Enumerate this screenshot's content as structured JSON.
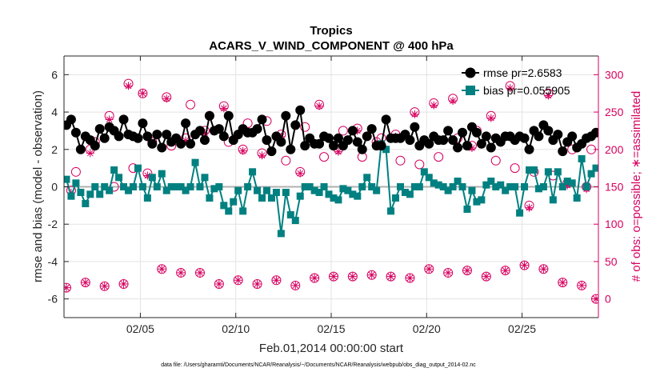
{
  "colors": {
    "rmse": "#000000",
    "bias": "#008080",
    "obs": "#d6005f",
    "zero_line": "#b0b0b0",
    "grid": "#e3e3e3"
  },
  "chart_data": {
    "type": "line",
    "title": "Tropics",
    "subtitle": "ACARS_V_WIND_COMPONENT @ 400 hPa",
    "xlabel": "Feb.01,2014 00:00:00 start",
    "ylabel": "rmse and bias (model - observation)",
    "ylabel_right": "# of obs: o=possible; ∗=assimilated",
    "footnote": "data file: /Users/gharamti/Documents/NCAR/Reanalysis/~/Documents/NCAR/Reanalysis/webpub/obs_diag_output_2014-02.nc",
    "xlim": [
      1,
      29
    ],
    "ylim": [
      -7,
      7
    ],
    "ylim_right": [
      -25,
      325
    ],
    "x_ticks": [
      5,
      10,
      15,
      20,
      25
    ],
    "x_tick_labels": [
      "02/05",
      "02/10",
      "02/15",
      "02/20",
      "02/25"
    ],
    "y_ticks": [
      -6,
      -4,
      -2,
      0,
      2,
      4,
      6
    ],
    "y_tick_labels": [
      "-6",
      "-4",
      "-2",
      "0",
      "2",
      "4",
      "6"
    ],
    "y_ticks_right": [
      0,
      50,
      100,
      150,
      200,
      250,
      300
    ],
    "y_tick_labels_right": [
      "0",
      "50",
      "100",
      "150",
      "200",
      "250",
      "300"
    ],
    "legend": [
      "rmse pr=2.6583",
      "bias pr=0.055905"
    ],
    "legend_position": "top-right",
    "grid": true,
    "series": [
      {
        "name": "rmse",
        "x": [
          1.125,
          1.375,
          1.625,
          1.875,
          2.125,
          2.375,
          2.625,
          2.875,
          3.125,
          3.375,
          3.625,
          3.875,
          4.125,
          4.375,
          4.625,
          4.875,
          5.125,
          5.375,
          5.625,
          5.875,
          6.125,
          6.375,
          6.625,
          6.875,
          7.125,
          7.375,
          7.625,
          7.875,
          8.125,
          8.375,
          8.625,
          8.875,
          9.125,
          9.375,
          9.625,
          9.875,
          10.125,
          10.375,
          10.625,
          10.875,
          11.125,
          11.375,
          11.625,
          11.875,
          12.125,
          12.375,
          12.625,
          12.875,
          13.125,
          13.375,
          13.625,
          13.875,
          14.125,
          14.375,
          14.625,
          14.875,
          15.125,
          15.375,
          15.625,
          15.875,
          16.125,
          16.375,
          16.625,
          16.875,
          17.125,
          17.375,
          17.625,
          17.875,
          18.125,
          18.375,
          18.625,
          18.875,
          19.125,
          19.375,
          19.625,
          19.875,
          20.125,
          20.375,
          20.625,
          20.875,
          21.125,
          21.375,
          21.625,
          21.875,
          22.125,
          22.375,
          22.625,
          22.875,
          23.125,
          23.375,
          23.625,
          23.875,
          24.125,
          24.375,
          24.625,
          24.875,
          25.125,
          25.375,
          25.625,
          25.875,
          26.125,
          26.375,
          26.625,
          26.875,
          27.125,
          27.375,
          27.625,
          27.875,
          28.125,
          28.375,
          28.625,
          28.875
        ],
        "values": [
          3.3,
          3.6,
          2.9,
          2.0,
          2.7,
          2.5,
          2.2,
          3.1,
          2.6,
          3.2,
          3.0,
          2.7,
          3.6,
          2.8,
          2.7,
          2.6,
          3.4,
          2.7,
          2.3,
          2.8,
          2.1,
          2.8,
          2.4,
          2.6,
          2.3,
          3.4,
          2.3,
          2.8,
          3.0,
          2.5,
          3.8,
          3.0,
          3.1,
          2.7,
          3.8,
          2.5,
          2.8,
          3.1,
          2.9,
          2.9,
          3.1,
          3.6,
          2.5,
          1.9,
          2.7,
          2.4,
          3.8,
          2.0,
          3.3,
          4.1,
          2.2,
          2.6,
          2.3,
          2.3,
          2.7,
          2.6,
          2.2,
          2.6,
          2.2,
          2.5,
          3.0,
          2.4,
          2.0,
          2.7,
          3.1,
          2.2,
          2.2,
          3.6,
          2.6,
          2.6,
          2.6,
          2.8,
          2.5,
          3.2,
          2.2,
          2.5,
          2.3,
          2.7,
          2.5,
          2.5,
          3.0,
          2.5,
          2.1,
          2.9,
          2.2,
          3.2,
          2.9,
          2.3,
          2.7,
          2.1,
          2.6,
          2.4,
          2.7,
          2.7,
          2.5,
          2.7,
          2.6,
          2.0,
          3.0,
          2.7,
          3.3,
          3.0,
          2.5,
          2.8,
          1.9,
          2.4,
          2.7,
          2.1,
          2.3,
          2.6,
          2.7,
          2.9
        ]
      },
      {
        "name": "bias",
        "x": [
          1.125,
          1.375,
          1.625,
          1.875,
          2.125,
          2.375,
          2.625,
          2.875,
          3.125,
          3.375,
          3.625,
          3.875,
          4.125,
          4.375,
          4.625,
          4.875,
          5.125,
          5.375,
          5.625,
          5.875,
          6.125,
          6.375,
          6.625,
          6.875,
          7.125,
          7.375,
          7.625,
          7.875,
          8.125,
          8.375,
          8.625,
          8.875,
          9.125,
          9.375,
          9.625,
          9.875,
          10.125,
          10.375,
          10.625,
          10.875,
          11.125,
          11.375,
          11.625,
          11.875,
          12.125,
          12.375,
          12.625,
          12.875,
          13.125,
          13.375,
          13.625,
          13.875,
          14.125,
          14.375,
          14.625,
          14.875,
          15.125,
          15.375,
          15.625,
          15.875,
          16.125,
          16.375,
          16.625,
          16.875,
          17.125,
          17.375,
          17.625,
          17.875,
          18.125,
          18.375,
          18.625,
          18.875,
          19.125,
          19.375,
          19.625,
          19.875,
          20.125,
          20.375,
          20.625,
          20.875,
          21.125,
          21.375,
          21.625,
          21.875,
          22.125,
          22.375,
          22.625,
          22.875,
          23.125,
          23.375,
          23.625,
          23.875,
          24.125,
          24.375,
          24.625,
          24.875,
          25.125,
          25.375,
          25.625,
          25.875,
          26.125,
          26.375,
          26.625,
          26.875,
          27.125,
          27.375,
          27.625,
          27.875,
          28.125,
          28.375,
          28.625,
          28.875
        ],
        "values": [
          0.4,
          -0.5,
          0.2,
          -0.3,
          -0.9,
          -0.4,
          0.0,
          -0.4,
          0.0,
          -0.2,
          0.9,
          0.5,
          0.0,
          -0.2,
          0.0,
          1.0,
          0.0,
          -0.6,
          0.5,
          0.0,
          0.7,
          -0.2,
          0.0,
          0.0,
          0.0,
          -0.2,
          0.0,
          1.3,
          0.0,
          0.5,
          -0.6,
          -0.1,
          0.0,
          -1.0,
          -1.3,
          -0.8,
          -0.2,
          -1.3,
          0.0,
          0.8,
          -0.2,
          -0.6,
          -0.2,
          -0.6,
          -0.3,
          -2.5,
          -0.3,
          -1.5,
          -1.8,
          -0.5,
          0.0,
          0.0,
          -0.2,
          -0.3,
          0.0,
          -0.4,
          -0.6,
          -0.7,
          -0.1,
          -0.2,
          -0.4,
          -0.5,
          0.0,
          0.5,
          0.0,
          -0.2,
          2.3,
          2.0,
          -1.3,
          -0.6,
          0.0,
          -0.3,
          -0.4,
          0.0,
          0.0,
          0.8,
          0.5,
          0.2,
          0.1,
          0.0,
          -0.2,
          0.0,
          0.3,
          0.0,
          -1.2,
          -0.2,
          -0.8,
          -0.7,
          0.1,
          0.3,
          0.0,
          0.1,
          -0.2,
          0.0,
          0.0,
          -1.4,
          0.0,
          0.9,
          0.9,
          -0.1,
          0.0,
          0.8,
          -0.7,
          0.8,
          0.0,
          0.3,
          0.2,
          -0.6,
          1.5,
          0.0,
          0.7,
          1.0
        ]
      },
      {
        "name": "obs possible",
        "axis": "right",
        "x": [
          1.125,
          1.375,
          1.625,
          2.125,
          2.375,
          2.625,
          3.125,
          3.375,
          3.625,
          4.125,
          4.375,
          4.625,
          5.125,
          5.375,
          5.625,
          6.125,
          6.375,
          6.625,
          7.125,
          7.375,
          7.625,
          8.125,
          8.375,
          8.625,
          9.125,
          9.375,
          9.625,
          10.125,
          10.375,
          10.625,
          11.125,
          11.375,
          11.625,
          12.125,
          12.375,
          12.625,
          13.125,
          13.375,
          13.625,
          14.125,
          14.375,
          14.625,
          15.125,
          15.375,
          15.625,
          16.125,
          16.375,
          16.625,
          17.125,
          17.375,
          17.625,
          18.125,
          18.375,
          18.625,
          19.125,
          19.375,
          19.625,
          20.125,
          20.375,
          20.625,
          21.125,
          21.375,
          21.625,
          22.125,
          22.375,
          22.625,
          23.125,
          23.375,
          23.625,
          24.125,
          24.375,
          24.625,
          25.125,
          25.375,
          25.625,
          26.125,
          26.375,
          26.625,
          27.125,
          27.375,
          27.625,
          28.125,
          28.375,
          28.625,
          28.875
        ],
        "values": [
          15,
          145,
          170,
          22,
          200,
          210,
          17,
          245,
          150,
          20,
          288,
          175,
          275,
          168,
          210,
          40,
          270,
          205,
          35,
          215,
          260,
          35,
          225,
          245,
          20,
          258,
          210,
          25,
          200,
          235,
          20,
          195,
          238,
          25,
          220,
          185,
          18,
          170,
          230,
          28,
          260,
          190,
          30,
          200,
          225,
          30,
          228,
          190,
          32,
          210,
          215,
          30,
          220,
          185,
          28,
          250,
          180,
          40,
          262,
          190,
          35,
          268,
          215,
          38,
          205,
          225,
          30,
          245,
          185,
          38,
          285,
          175,
          45,
          125,
          170,
          40,
          275,
          165,
          22,
          155,
          200,
          18,
          150,
          200,
          0
        ],
        "symbol": "o"
      },
      {
        "name": "obs assimilated",
        "axis": "right",
        "x": [
          1.125,
          1.375,
          2.125,
          2.375,
          2.625,
          3.125,
          3.375,
          4.125,
          4.375,
          5.125,
          5.375,
          6.125,
          6.375,
          7.125,
          7.375,
          8.125,
          8.375,
          9.125,
          9.375,
          10.125,
          10.375,
          11.125,
          11.375,
          12.125,
          12.375,
          13.125,
          13.375,
          14.125,
          14.375,
          15.125,
          15.375,
          16.125,
          16.375,
          17.125,
          17.375,
          18.125,
          18.375,
          19.125,
          19.375,
          20.125,
          20.375,
          21.125,
          21.375,
          22.125,
          22.375,
          23.125,
          23.375,
          24.125,
          24.375,
          25.125,
          25.375,
          26.125,
          26.375,
          27.125,
          27.375,
          28.125,
          28.375,
          28.875
        ],
        "values": [
          15,
          142,
          22,
          195,
          205,
          17,
          240,
          20,
          285,
          275,
          165,
          40,
          268,
          35,
          212,
          35,
          222,
          20,
          255,
          25,
          198,
          20,
          192,
          25,
          217,
          18,
          168,
          28,
          258,
          30,
          197,
          30,
          225,
          32,
          207,
          30,
          217,
          28,
          247,
          40,
          259,
          35,
          265,
          38,
          202,
          30,
          242,
          38,
          282,
          45,
          122,
          40,
          272,
          22,
          152,
          18,
          147,
          0
        ],
        "symbol": "*"
      }
    ]
  }
}
